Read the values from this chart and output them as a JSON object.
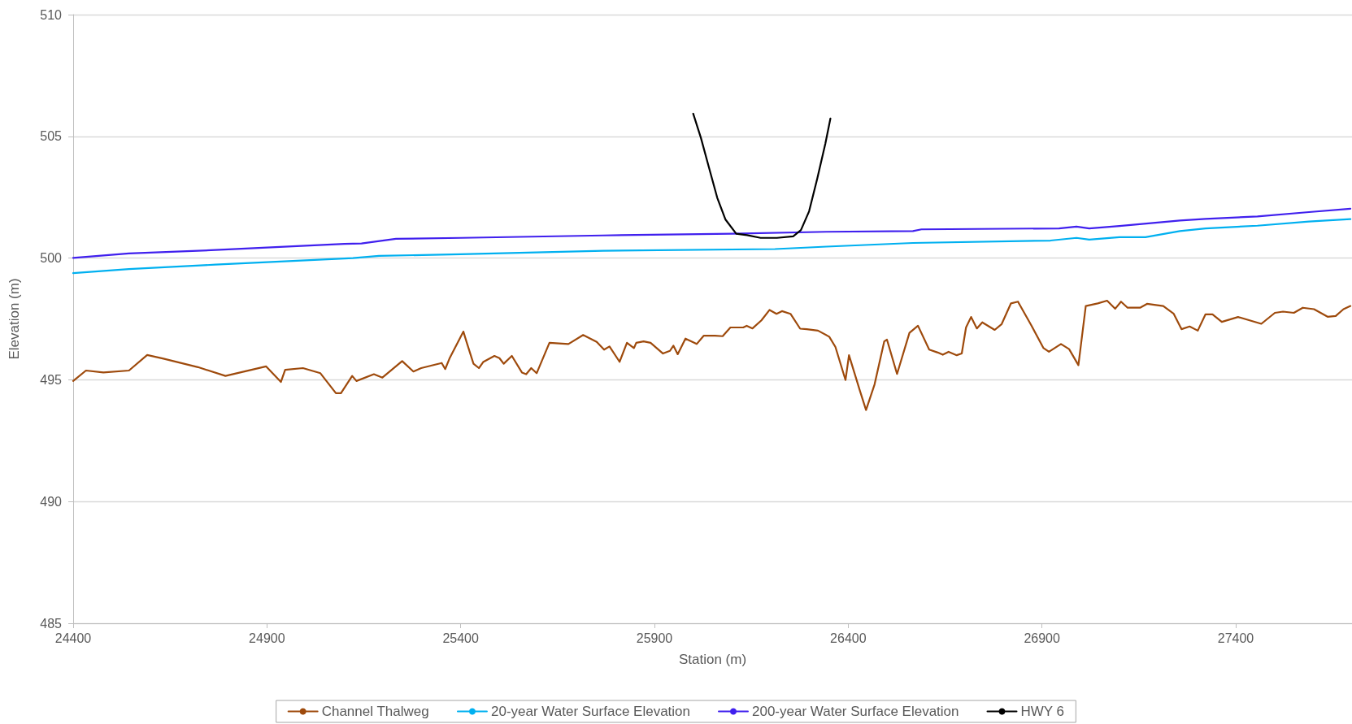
{
  "chart_data": {
    "type": "line",
    "xlabel": "Station (m)",
    "ylabel": "Elevation (m)",
    "xlim": [
      24400,
      27700
    ],
    "xticks": [
      24400,
      24900,
      25400,
      25900,
      26400,
      26900,
      27400
    ],
    "ylim": [
      485,
      510
    ],
    "yticks": [
      485,
      490,
      495,
      500,
      505,
      510
    ],
    "grid": "y",
    "legend": "bottom",
    "marker": "none",
    "line_style": "solid",
    "series": [
      {
        "name": "Channel Thalweg",
        "color": "#9e4a0c",
        "x": [
          24400,
          24433,
          24478,
          24544,
          24591,
          24633,
          24722,
          24793,
          24898,
          24936,
          24947,
          24993,
          25038,
          25078,
          25091,
          25120,
          25131,
          25176,
          25198,
          25249,
          25278,
          25298,
          25351,
          25360,
          25371,
          25407,
          25416,
          25433,
          25447,
          25458,
          25487,
          25500,
          25511,
          25532,
          25558,
          25569,
          25582,
          25596,
          25629,
          25678,
          25716,
          25751,
          25770,
          25784,
          25810,
          25829,
          25847,
          25853,
          25872,
          25890,
          25922,
          25940,
          25949,
          25960,
          25980,
          26009,
          26027,
          26056,
          26076,
          26096,
          26129,
          26138,
          26153,
          26176,
          26197,
          26215,
          26229,
          26251,
          26276,
          26293,
          26322,
          26351,
          26367,
          26393,
          26402,
          26431,
          26446,
          26468,
          26493,
          26500,
          26526,
          26558,
          26580,
          26609,
          26631,
          26644,
          26659,
          26680,
          26693,
          26704,
          26717,
          26732,
          26746,
          26778,
          26796,
          26820,
          26838,
          26872,
          26904,
          26918,
          26949,
          26970,
          26994,
          27013,
          27044,
          27068,
          27089,
          27104,
          27121,
          27153,
          27171,
          27213,
          27240,
          27260,
          27281,
          27302,
          27322,
          27340,
          27364,
          27406,
          27466,
          27501,
          27522,
          27550,
          27573,
          27602,
          27637,
          27658,
          27678,
          27696
        ],
        "values": [
          494.95,
          495.38,
          495.3,
          495.38,
          496.02,
          495.87,
          495.52,
          495.16,
          495.55,
          494.91,
          495.41,
          495.48,
          495.27,
          494.45,
          494.45,
          495.16,
          494.95,
          495.23,
          495.09,
          495.77,
          495.34,
          495.48,
          495.69,
          495.44,
          495.87,
          496.98,
          496.51,
          495.66,
          495.48,
          495.73,
          495.98,
          495.89,
          495.66,
          495.98,
          495.3,
          495.23,
          495.48,
          495.27,
          496.52,
          496.47,
          496.84,
          496.56,
          496.24,
          496.37,
          495.74,
          496.52,
          496.3,
          496.52,
          496.58,
          496.52,
          496.08,
          496.19,
          496.4,
          496.05,
          496.69,
          496.47,
          496.81,
          496.81,
          496.79,
          497.15,
          497.15,
          497.22,
          497.11,
          497.44,
          497.87,
          497.71,
          497.82,
          497.71,
          497.1,
          497.08,
          497.02,
          496.77,
          496.35,
          494.99,
          496.01,
          494.51,
          493.76,
          494.81,
          496.58,
          496.65,
          495.24,
          496.93,
          497.22,
          496.24,
          496.12,
          496.03,
          496.15,
          496.01,
          496.08,
          497.15,
          497.58,
          497.11,
          497.36,
          497.05,
          497.29,
          498.14,
          498.21,
          497.25,
          496.3,
          496.15,
          496.47,
          496.26,
          495.6,
          498.03,
          498.14,
          498.25,
          497.92,
          498.21,
          497.96,
          497.96,
          498.12,
          498.03,
          497.71,
          497.08,
          497.19,
          497.02,
          497.69,
          497.69,
          497.38,
          497.58,
          497.3,
          497.75,
          497.8,
          497.75,
          497.96,
          497.9,
          497.59,
          497.62,
          497.9,
          498.03
        ]
      },
      {
        "name": "20-year Water Surface Elevation",
        "color": "#00b0f0",
        "x": [
          24400,
          24544,
          24767,
          25100,
          25122,
          25189,
          25400,
          25767,
          26211,
          26344,
          26567,
          26922,
          26989,
          27022,
          27100,
          27167,
          27256,
          27322,
          27456,
          27589,
          27696
        ],
        "values": [
          499.38,
          499.55,
          499.73,
          499.98,
          500.0,
          500.09,
          500.16,
          500.3,
          500.37,
          500.47,
          500.62,
          500.72,
          500.83,
          500.76,
          500.86,
          500.86,
          501.11,
          501.22,
          501.33,
          501.5,
          501.6
        ]
      },
      {
        "name": "200-year Water Surface Elevation",
        "color": "#4020ee",
        "x": [
          24400,
          24544,
          24767,
          25100,
          25144,
          25233,
          25400,
          25767,
          26100,
          26344,
          26567,
          26589,
          26944,
          26989,
          27022,
          27100,
          27256,
          27322,
          27456,
          27589,
          27696
        ],
        "values": [
          500.01,
          500.19,
          500.33,
          500.58,
          500.6,
          500.79,
          500.83,
          500.93,
          501.0,
          501.08,
          501.11,
          501.18,
          501.22,
          501.29,
          501.22,
          501.32,
          501.54,
          501.61,
          501.71,
          501.89,
          502.03
        ]
      },
      {
        "name": "HWY 6",
        "color": "#000000",
        "x": [
          26000,
          26020,
          26041,
          26062,
          26083,
          26111,
          26139,
          26174,
          26216,
          26258,
          26278,
          26299,
          26320,
          26341,
          26354
        ],
        "values": [
          505.93,
          504.93,
          503.7,
          502.48,
          501.59,
          501.0,
          500.94,
          500.83,
          500.83,
          500.89,
          501.15,
          501.92,
          503.26,
          504.7,
          505.73
        ]
      }
    ]
  }
}
